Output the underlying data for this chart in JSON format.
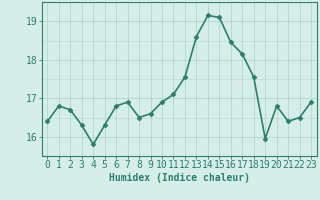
{
  "xlabel": "Humidex (Indice chaleur)",
  "ylabel": "",
  "x": [
    0,
    1,
    2,
    3,
    4,
    5,
    6,
    7,
    8,
    9,
    10,
    11,
    12,
    13,
    14,
    15,
    16,
    17,
    18,
    19,
    20,
    21,
    22,
    23
  ],
  "y": [
    16.4,
    16.8,
    16.7,
    16.3,
    15.8,
    16.3,
    16.8,
    16.9,
    16.5,
    16.6,
    16.9,
    17.1,
    17.55,
    18.6,
    19.15,
    19.1,
    18.45,
    18.15,
    17.55,
    15.95,
    16.8,
    16.4,
    16.5,
    16.9
  ],
  "line_color": "#2e7d6e",
  "marker": "D",
  "marker_size": 2.5,
  "background_color": "#d6eeea",
  "grid_color": "#b8d8d2",
  "axis_color": "#2e7d6e",
  "tick_color": "#2e7d6e",
  "label_color": "#2e7d6e",
  "ylim": [
    15.5,
    19.5
  ],
  "yticks": [
    16,
    17,
    18,
    19
  ],
  "xlim": [
    -0.5,
    23.5
  ],
  "xticks": [
    0,
    1,
    2,
    3,
    4,
    5,
    6,
    7,
    8,
    9,
    10,
    11,
    12,
    13,
    14,
    15,
    16,
    17,
    18,
    19,
    20,
    21,
    22,
    23
  ],
  "xlabel_fontsize": 7,
  "tick_fontsize": 7,
  "linewidth": 1.2
}
